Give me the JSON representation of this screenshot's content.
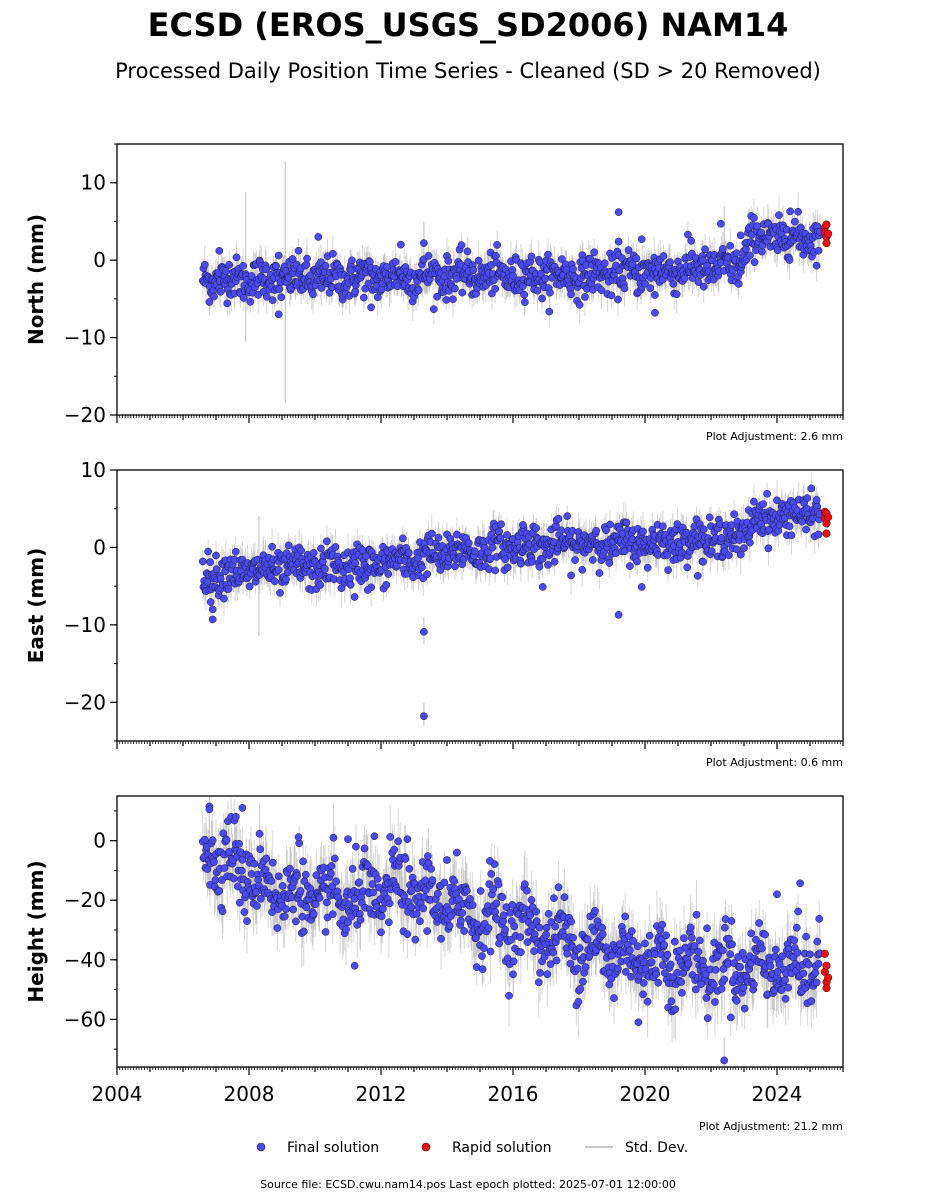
{
  "title": "ECSD (EROS_USGS_SD2006) NAM14",
  "subtitle": "Processed Daily Position Time Series - Cleaned (SD > 20 Removed)",
  "colors": {
    "final": "#4a4af0",
    "rapid": "#e81010",
    "stddev": "#c8c8c8",
    "point_edge": "#1a1a40"
  },
  "legend": {
    "final": "Final solution",
    "rapid": "Rapid solution",
    "stddev": "Std. Dev."
  },
  "footer": "Source file: ECSD.cwu.nam14.pos  Last epoch plotted: 2025-07-01 12:00:00",
  "chart_data": [
    {
      "type": "scatter",
      "ylabel": "North (mm)",
      "adjustment": "Plot Adjustment: 2.6 mm",
      "xlim": [
        2004,
        2026
      ],
      "ylim": [
        -20,
        15
      ],
      "yticks": [
        -20,
        -10,
        0,
        10
      ],
      "xticks": [
        2004,
        2008,
        2012,
        2016,
        2020,
        2024
      ],
      "show_xticklabels": false,
      "data_start": 2006.6,
      "data_end": 2025.3,
      "baseline": [
        [
          2006.6,
          -2.5
        ],
        [
          2010,
          -2.4
        ],
        [
          2014,
          -2.0
        ],
        [
          2018,
          -2.0
        ],
        [
          2020,
          -1.5
        ],
        [
          2022.9,
          -0.8
        ],
        [
          2023.2,
          2.9
        ],
        [
          2025.3,
          3.0
        ]
      ],
      "scatter": 1.3,
      "seasonal": 0.4,
      "outliers": [
        [
          2007.1,
          1.2
        ],
        [
          2008.9,
          0.6
        ],
        [
          2008.9,
          -7.0
        ],
        [
          2010.1,
          3.0
        ],
        [
          2011.7,
          -6.1
        ],
        [
          2012.6,
          2.0
        ],
        [
          2013.3,
          2.2
        ],
        [
          2019.2,
          6.2
        ],
        [
          2019.2,
          2.4
        ],
        [
          2019.9,
          2.7
        ],
        [
          2020.3,
          -4.5
        ],
        [
          2020.3,
          -6.8
        ],
        [
          2021.4,
          2.5
        ],
        [
          2022.3,
          4.7
        ],
        [
          2022.9,
          3.2
        ],
        [
          2024.4,
          6.3
        ]
      ],
      "rapid": [
        [
          2025.45,
          4.2
        ],
        [
          2025.45,
          3.6
        ],
        [
          2025.5,
          3.0
        ],
        [
          2025.5,
          2.2
        ],
        [
          2025.5,
          4.6
        ],
        [
          2025.55,
          3.4
        ]
      ],
      "stddev_spikes": [
        [
          2007.9,
          8.8,
          -10.5
        ],
        [
          2009.1,
          12.7,
          -18.5
        ],
        [
          2013.3,
          5.0,
          -4.0
        ],
        [
          2022.4,
          7.0,
          -2.0
        ]
      ]
    },
    {
      "type": "scatter",
      "ylabel": "East (mm)",
      "adjustment": "Plot Adjustment: 0.6 mm",
      "xlim": [
        2004,
        2026
      ],
      "ylim": [
        -25,
        10
      ],
      "yticks": [
        -20,
        -10,
        0,
        10
      ],
      "xticks": [
        2004,
        2008,
        2012,
        2016,
        2020,
        2024
      ],
      "show_xticklabels": false,
      "data_start": 2006.6,
      "data_end": 2025.3,
      "baseline": [
        [
          2006.6,
          -3.5
        ],
        [
          2010,
          -2.6
        ],
        [
          2012,
          -2.2
        ],
        [
          2014,
          -0.8
        ],
        [
          2016,
          0.2
        ],
        [
          2018,
          0.5
        ],
        [
          2020,
          0.6
        ],
        [
          2022,
          1.0
        ],
        [
          2023.0,
          1.6
        ],
        [
          2023.3,
          3.6
        ],
        [
          2025.3,
          4.6
        ]
      ],
      "scatter": 1.3,
      "seasonal": 0.5,
      "outliers": [
        [
          2006.9,
          -8.0
        ],
        [
          2006.9,
          -9.3
        ],
        [
          2011.2,
          -6.4
        ],
        [
          2011.6,
          -5.5
        ],
        [
          2013.3,
          -10.9
        ],
        [
          2013.3,
          -21.8
        ],
        [
          2016.9,
          -5.1
        ],
        [
          2019.2,
          -8.7
        ],
        [
          2019.9,
          -5.1
        ],
        [
          2016.3,
          2.9
        ]
      ],
      "rapid": [
        [
          2025.45,
          4.6
        ],
        [
          2025.45,
          3.8
        ],
        [
          2025.5,
          3.1
        ],
        [
          2025.5,
          1.8
        ],
        [
          2025.5,
          4.4
        ],
        [
          2025.55,
          3.9
        ]
      ],
      "stddev_spikes": [
        [
          2008.3,
          4.0,
          -11.5
        ],
        [
          2013.3,
          -9.0,
          -12.5
        ],
        [
          2013.3,
          -20.0,
          -23.0
        ]
      ]
    },
    {
      "type": "scatter",
      "ylabel": "Height (mm)",
      "adjustment": "Plot Adjustment: 21.2 mm",
      "xlim": [
        2004,
        2026
      ],
      "ylim": [
        -76,
        15
      ],
      "yticks": [
        -60,
        -40,
        -20,
        0
      ],
      "xticks": [
        2004,
        2008,
        2012,
        2016,
        2020,
        2024
      ],
      "show_xticklabels": true,
      "data_start": 2006.6,
      "data_end": 2025.3,
      "baseline": [
        [
          2006.6,
          -1
        ],
        [
          2007.5,
          -8
        ],
        [
          2008.5,
          -15
        ],
        [
          2010,
          -20
        ],
        [
          2011.5,
          -20
        ],
        [
          2012.5,
          -16
        ],
        [
          2014,
          -22
        ],
        [
          2016,
          -28
        ],
        [
          2018,
          -35
        ],
        [
          2020,
          -40
        ],
        [
          2022,
          -42
        ],
        [
          2025.3,
          -42
        ]
      ],
      "scatter": 6.0,
      "seasonal": 5.0,
      "outliers": [
        [
          2006.8,
          11.5
        ],
        [
          2006.8,
          10.5
        ],
        [
          2007.8,
          11.0
        ],
        [
          2007.6,
          8.0
        ],
        [
          2009.5,
          1.2
        ],
        [
          2011.0,
          0.5
        ],
        [
          2011.8,
          1.5
        ],
        [
          2012.8,
          0.5
        ],
        [
          2014.0,
          -6.5
        ],
        [
          2015.3,
          -6.8
        ],
        [
          2014.3,
          -4.0
        ],
        [
          2011.2,
          -42.0
        ],
        [
          2019.8,
          -61.0
        ],
        [
          2022.4,
          -73.8
        ],
        [
          2024.7,
          -14.3
        ],
        [
          2024.0,
          -18.0
        ]
      ],
      "rapid": [
        [
          2025.45,
          -38.0
        ],
        [
          2025.45,
          -44.0
        ],
        [
          2025.5,
          -47.5
        ],
        [
          2025.5,
          -49.5
        ],
        [
          2025.5,
          -42.0
        ],
        [
          2025.55,
          -46.0
        ]
      ],
      "stddev_spikes": [
        [
          2006.8,
          15.0,
          3.0
        ],
        [
          2007.2,
          -14.0,
          -31.0
        ],
        [
          2022.4,
          -66.0,
          -76.0
        ]
      ]
    }
  ]
}
